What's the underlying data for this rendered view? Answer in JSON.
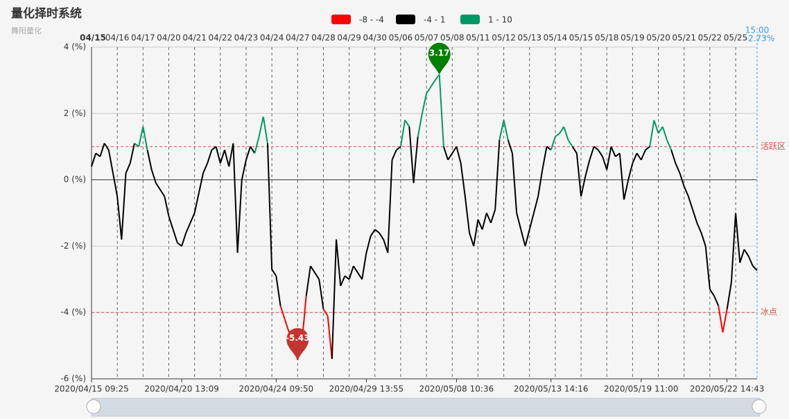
{
  "chart_data": {
    "type": "line",
    "title": "量化择时系统",
    "subtitle": "舞阳量化",
    "pieces": [
      {
        "min": -8,
        "max": -4,
        "color": "#ff0000",
        "label": "-8 - -4"
      },
      {
        "min": -4,
        "max": 1,
        "color": "#000000",
        "label": "-4 - 1"
      },
      {
        "min": 1,
        "max": 10,
        "color": "#009966",
        "label": "1 - 10"
      }
    ],
    "days": [
      "04/15",
      "04/16",
      "04/17",
      "04/20",
      "04/21",
      "04/22",
      "04/23",
      "04/24",
      "04/27",
      "04/28",
      "04/29",
      "04/30",
      "05/06",
      "05/07",
      "05/08",
      "05/11",
      "05/12",
      "05/13",
      "05/14",
      "05/15",
      "05/18",
      "05/19",
      "05/20",
      "05/21",
      "05/22",
      "05/25"
    ],
    "points_per_day": 6,
    "end_time": "15:00",
    "end_value_label": "-2.73%",
    "categories": [
      "2020/04/15 09:25",
      null,
      null,
      null,
      null,
      null,
      null,
      null,
      null,
      null,
      null,
      null,
      null,
      null,
      null,
      null,
      null,
      null,
      null,
      null,
      null,
      "2020/04/20 13:09",
      null,
      null,
      null,
      null,
      null,
      null,
      null,
      null,
      null,
      null,
      null,
      null,
      null,
      null,
      null,
      null,
      null,
      null,
      null,
      null,
      null,
      "2020/04/24 09:50",
      null,
      null,
      null,
      null,
      null,
      null,
      null,
      null,
      null,
      null,
      null,
      null,
      null,
      null,
      null,
      null,
      null,
      null,
      null,
      null,
      "2020/04/29 13:55",
      null,
      null,
      null,
      null,
      null,
      null,
      null,
      null,
      null,
      null,
      null,
      null,
      null,
      null,
      null,
      null,
      null,
      null,
      null,
      null,
      "2020/05/08 10:36",
      null,
      null,
      null,
      null,
      null,
      null,
      null,
      null,
      null,
      null,
      null,
      null,
      null,
      null,
      null,
      null,
      null,
      null,
      null,
      null,
      null,
      "2020/05/13 14:16",
      null,
      null,
      null,
      null,
      null,
      null,
      null,
      null,
      null,
      null,
      null,
      null,
      null,
      null,
      null,
      null,
      null,
      null,
      null,
      null,
      "2020/05/19 11:00",
      null,
      null,
      null,
      null,
      null,
      null,
      null,
      null,
      null,
      null,
      null,
      null,
      null,
      null,
      null,
      null,
      null,
      null,
      null,
      "2020/05/22 14:43",
      null,
      null,
      null,
      null,
      null,
      null,
      null
    ],
    "values": [
      0.4,
      0.8,
      0.7,
      1.1,
      0.9,
      0.2,
      -0.5,
      -1.8,
      0.2,
      0.5,
      1.1,
      1.0,
      1.6,
      0.9,
      0.3,
      -0.1,
      -0.3,
      -0.5,
      -1.1,
      -1.5,
      -1.9,
      -2.0,
      -1.6,
      -1.3,
      -1.0,
      -0.4,
      0.2,
      0.5,
      0.9,
      1.0,
      0.5,
      0.9,
      0.4,
      1.1,
      -2.2,
      0.0,
      0.6,
      1.0,
      0.8,
      1.3,
      1.9,
      1.1,
      -2.7,
      -2.9,
      -3.8,
      -4.2,
      -4.6,
      -4.9,
      -5.43,
      -4.9,
      -3.5,
      -2.6,
      -2.8,
      -3.0,
      -3.9,
      -4.1,
      -5.4,
      -1.8,
      -3.2,
      -2.9,
      -3.0,
      -2.6,
      -2.8,
      -3.0,
      -2.2,
      -1.7,
      -1.5,
      -1.6,
      -1.8,
      -2.2,
      0.6,
      0.9,
      1.0,
      1.8,
      1.6,
      -0.1,
      1.3,
      2.0,
      2.6,
      2.8,
      3.0,
      3.17,
      1.0,
      0.6,
      0.8,
      1.0,
      0.5,
      -0.5,
      -1.6,
      -2.0,
      -1.2,
      -1.5,
      -1.0,
      -1.3,
      -0.9,
      1.2,
      1.8,
      1.2,
      0.8,
      -1.0,
      -1.5,
      -2.0,
      -1.5,
      -1.0,
      -0.5,
      0.3,
      1.0,
      0.9,
      1.3,
      1.4,
      1.6,
      1.2,
      1.0,
      0.8,
      -0.5,
      0.1,
      0.6,
      1.0,
      0.9,
      0.7,
      0.3,
      1.0,
      0.7,
      0.8,
      -0.6,
      0.0,
      0.5,
      0.8,
      0.6,
      0.9,
      1.0,
      1.8,
      1.4,
      1.6,
      1.2,
      0.9,
      0.5,
      0.2,
      -0.2,
      -0.5,
      -0.9,
      -1.3,
      -1.6,
      -2.0,
      -3.3,
      -3.5,
      -3.8,
      -4.6,
      -3.9,
      -3.1,
      -1.0,
      -2.5,
      -2.1,
      -2.3,
      -2.6,
      -2.73
    ],
    "ylim": [
      -6,
      4
    ],
    "yticks": [
      {
        "value": -6,
        "label": "-6 (%)"
      },
      {
        "value": -4,
        "label": "-4 (%)"
      },
      {
        "value": -2,
        "label": "-2 (%)"
      },
      {
        "value": 0,
        "label": "0 (%)"
      },
      {
        "value": 2,
        "label": "2 (%)"
      },
      {
        "value": 4,
        "label": "4 (%)"
      }
    ],
    "grid": true,
    "mark_lines": [
      {
        "value": 1,
        "label": "活跃区",
        "color": "#d9534f"
      },
      {
        "value": -4,
        "label": "冰点",
        "color": "#d9534f"
      }
    ],
    "max_pin_color": "#008000",
    "min_pin_color": "#c23531"
  }
}
